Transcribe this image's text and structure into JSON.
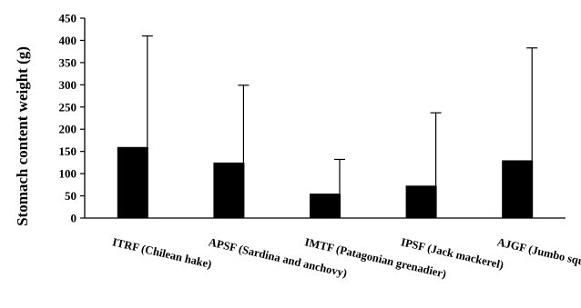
{
  "chart_data": {
    "type": "bar",
    "title": "",
    "xlabel": "",
    "ylabel": "Stomach content weight (g)",
    "ylim": [
      0,
      450
    ],
    "yticks": [
      0,
      50,
      100,
      150,
      200,
      250,
      300,
      350,
      400,
      450
    ],
    "categories": [
      "ITRF (Chilean hake)",
      "APSF (Sardina and anchovy)",
      "IMTF (Patagonian grenadier)",
      "IPSF (Jack mackerel)",
      "AJGF (Jumbo squid)"
    ],
    "values": [
      160,
      125,
      55,
      73,
      130
    ],
    "error_upper": [
      410,
      299,
      132,
      237,
      383
    ],
    "bar_color": "#000000",
    "grid": false,
    "legend": "none"
  }
}
